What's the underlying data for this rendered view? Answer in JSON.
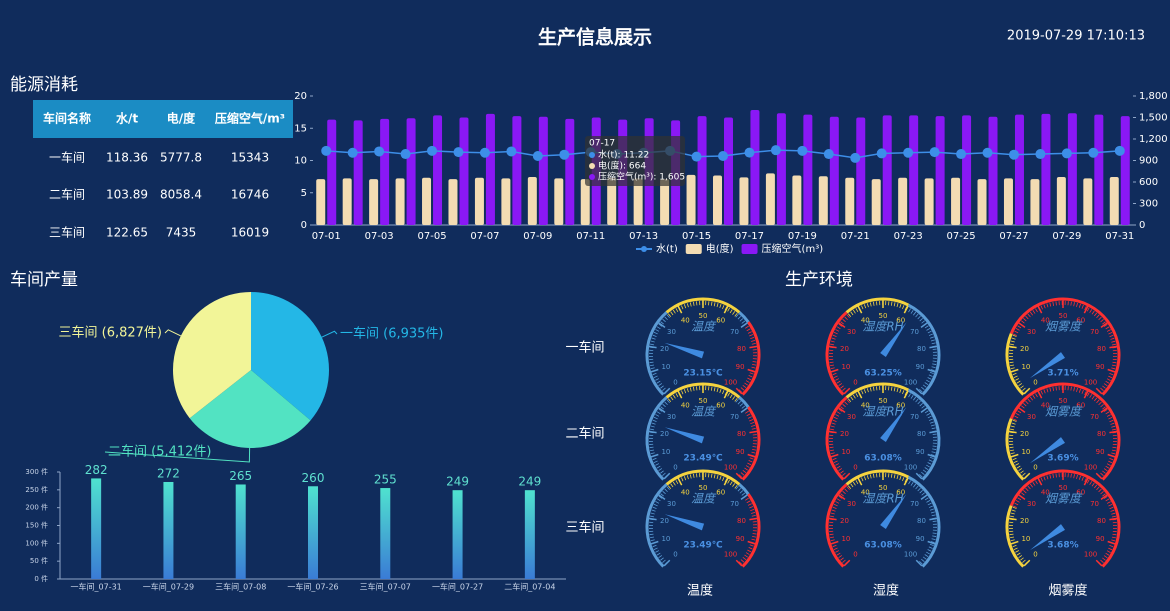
{
  "header": {
    "title": "生产信息展示",
    "datetime": "2019-07-29 17:10:13"
  },
  "sections": {
    "energy": "能源消耗",
    "output": "车间产量",
    "environment": "生产环境"
  },
  "energy_table": {
    "columns": [
      "车间名称",
      "水/t",
      "电/度",
      "压缩空气/m³"
    ],
    "rows": [
      [
        "一车间",
        118.36,
        5777.8,
        15343
      ],
      [
        "二车间",
        103.89,
        8058.4,
        16746
      ],
      [
        "三车间",
        122.65,
        7435,
        16019
      ]
    ]
  },
  "environment_rows": [
    "一车间",
    "二车间",
    "三车间"
  ],
  "environment_columns": [
    "温度",
    "湿度",
    "烟雾度"
  ],
  "chart_data": [
    {
      "type": "combo",
      "categories": [
        "07-01",
        null,
        "07-03",
        null,
        "07-05",
        null,
        "07-07",
        null,
        "07-09",
        null,
        "07-11",
        null,
        "07-13",
        null,
        "07-15",
        null,
        "07-17",
        null,
        "07-19",
        null,
        "07-21",
        null,
        "07-23",
        null,
        "07-25",
        null,
        "07-27",
        null,
        "07-29",
        null,
        "07-31"
      ],
      "ylim": [
        0,
        20
      ],
      "yticks": [
        0,
        5,
        10,
        15,
        20
      ],
      "y2lim": [
        0,
        1800
      ],
      "y2ticks": [
        0,
        300,
        600,
        900,
        {
          "value": 1200,
          "label": "1,200"
        },
        {
          "value": 1500,
          "label": "1,500"
        },
        {
          "value": 1800,
          "label": "1,800"
        }
      ],
      "series": [
        {
          "name": "水(t)",
          "type": "line",
          "color": "#3d8ee8",
          "values": [
            11.5,
            11.2,
            11.4,
            11.0,
            11.5,
            11.3,
            11.2,
            11.4,
            10.7,
            10.9,
            11.3,
            11.0,
            11.2,
            11.5,
            10.6,
            10.7,
            11.22,
            11.6,
            11.5,
            11.0,
            10.4,
            11.1,
            11.2,
            11.3,
            11.0,
            11.2,
            10.9,
            11.0,
            11.1,
            11.2,
            11.5
          ]
        },
        {
          "name": "电(度)",
          "type": "bar",
          "axis": "y2",
          "color": "#f3dcb3",
          "values": [
            640,
            650,
            640,
            650,
            660,
            640,
            660,
            650,
            670,
            650,
            640,
            660,
            650,
            640,
            700,
            690,
            664,
            720,
            690,
            680,
            660,
            640,
            660,
            650,
            660,
            640,
            650,
            640,
            670,
            650,
            670
          ]
        },
        {
          "name": "压缩空气(m³)",
          "type": "bar",
          "axis": "y2",
          "color": "#8a18f5",
          "values": [
            1470,
            1460,
            1480,
            1490,
            1530,
            1500,
            1550,
            1520,
            1510,
            1480,
            1500,
            1470,
            1490,
            1460,
            1520,
            1500,
            1605,
            1560,
            1540,
            1510,
            1500,
            1530,
            1530,
            1520,
            1530,
            1510,
            1540,
            1550,
            1560,
            1540,
            1520
          ]
        }
      ],
      "tooltip": {
        "title": "07-17",
        "lines": [
          "水(t): 11.22",
          "电(度): 664",
          "压缩空气(m³): 1,605"
        ]
      }
    },
    {
      "type": "pie",
      "values": [
        6935,
        5412,
        6827
      ],
      "labels": [
        "一车间 (6,935件)",
        "二车间 (5,412件)",
        "三车间 (6,827件)"
      ],
      "colors": [
        "#24b7e6",
        "#52e3c2",
        "#f2f598"
      ]
    },
    {
      "type": "bar",
      "categories": [
        "一车间_07-31",
        "一车间_07-29",
        "三车间_07-08",
        "一车间_07-26",
        "三车间_07-07",
        "一车间_07-27",
        "二车间_07-04"
      ],
      "values": [
        282,
        272,
        265,
        260,
        255,
        249,
        249
      ],
      "ylim": [
        0,
        300
      ],
      "yticks": [
        {
          "value": 0,
          "label": "0 件"
        },
        {
          "value": 50,
          "label": "50 件"
        },
        {
          "value": 100,
          "label": "100 件"
        },
        {
          "value": 150,
          "label": "150 件"
        },
        {
          "value": 200,
          "label": "200 件"
        },
        {
          "value": 250,
          "label": "250 件"
        },
        {
          "value": 300,
          "label": "300 件"
        }
      ]
    },
    {
      "type": "gauge",
      "title": "温度",
      "value": 23.15,
      "value_label": "23.15℃",
      "ylim": [
        0,
        100
      ],
      "yticks": [
        0,
        10,
        20,
        30,
        40,
        50,
        60,
        70,
        80,
        90,
        100
      ],
      "bands": [
        [
          0.35,
          "#5b9bd5"
        ],
        [
          0.65,
          "#f5d33f"
        ],
        [
          0.7,
          "#5b9bd5"
        ],
        [
          1,
          "#ff3030"
        ]
      ]
    },
    {
      "type": "gauge",
      "title": "湿度RH",
      "value": 63.25,
      "value_label": "63.25%",
      "ylim": [
        0,
        100
      ],
      "yticks": [
        0,
        10,
        20,
        30,
        40,
        50,
        60,
        70,
        80,
        90,
        100
      ],
      "bands": [
        [
          0.35,
          "#ff3030"
        ],
        [
          0.6,
          "#f5d33f"
        ],
        [
          1,
          "#5b9bd5"
        ]
      ]
    },
    {
      "type": "gauge",
      "title": "烟雾度",
      "value": 3.71,
      "value_label": "3.71%",
      "ylim": [
        0,
        100
      ],
      "yticks": [
        0,
        10,
        20,
        30,
        40,
        50,
        60,
        70,
        80,
        90,
        100
      ],
      "bands": [
        [
          0.25,
          "#f5d33f"
        ],
        [
          1,
          "#ff3030"
        ]
      ]
    },
    {
      "type": "gauge",
      "title": "温度",
      "value": 23.49,
      "value_label": "23.49℃",
      "ylim": [
        0,
        100
      ],
      "yticks": [
        0,
        10,
        20,
        30,
        40,
        50,
        60,
        70,
        80,
        90,
        100
      ],
      "bands": [
        [
          0.35,
          "#5b9bd5"
        ],
        [
          0.65,
          "#f5d33f"
        ],
        [
          0.7,
          "#5b9bd5"
        ],
        [
          1,
          "#ff3030"
        ]
      ]
    },
    {
      "type": "gauge",
      "title": "湿度RH",
      "value": 63.08,
      "value_label": "63.08%",
      "ylim": [
        0,
        100
      ],
      "yticks": [
        0,
        10,
        20,
        30,
        40,
        50,
        60,
        70,
        80,
        90,
        100
      ],
      "bands": [
        [
          0.35,
          "#ff3030"
        ],
        [
          0.6,
          "#f5d33f"
        ],
        [
          1,
          "#5b9bd5"
        ]
      ]
    },
    {
      "type": "gauge",
      "title": "烟雾度",
      "value": 3.69,
      "value_label": "3.69%",
      "ylim": [
        0,
        100
      ],
      "yticks": [
        0,
        10,
        20,
        30,
        40,
        50,
        60,
        70,
        80,
        90,
        100
      ],
      "bands": [
        [
          0.25,
          "#f5d33f"
        ],
        [
          1,
          "#ff3030"
        ]
      ]
    },
    {
      "type": "gauge",
      "title": "温度",
      "value": 23.49,
      "value_label": "23.49℃",
      "ylim": [
        0,
        100
      ],
      "yticks": [
        0,
        10,
        20,
        30,
        40,
        50,
        60,
        70,
        80,
        90,
        100
      ],
      "bands": [
        [
          0.35,
          "#5b9bd5"
        ],
        [
          0.65,
          "#f5d33f"
        ],
        [
          0.7,
          "#5b9bd5"
        ],
        [
          1,
          "#ff3030"
        ]
      ]
    },
    {
      "type": "gauge",
      "title": "湿度RH",
      "value": 63.08,
      "value_label": "63.08%",
      "ylim": [
        0,
        100
      ],
      "yticks": [
        0,
        10,
        20,
        30,
        40,
        50,
        60,
        70,
        80,
        90,
        100
      ],
      "bands": [
        [
          0.35,
          "#ff3030"
        ],
        [
          0.6,
          "#f5d33f"
        ],
        [
          1,
          "#5b9bd5"
        ]
      ]
    },
    {
      "type": "gauge",
      "title": "烟雾度",
      "value": 3.68,
      "value_label": "3.68%",
      "ylim": [
        0,
        100
      ],
      "yticks": [
        0,
        10,
        20,
        30,
        40,
        50,
        60,
        70,
        80,
        90,
        100
      ],
      "bands": [
        [
          0.25,
          "#f5d33f"
        ],
        [
          1,
          "#ff3030"
        ]
      ]
    }
  ]
}
